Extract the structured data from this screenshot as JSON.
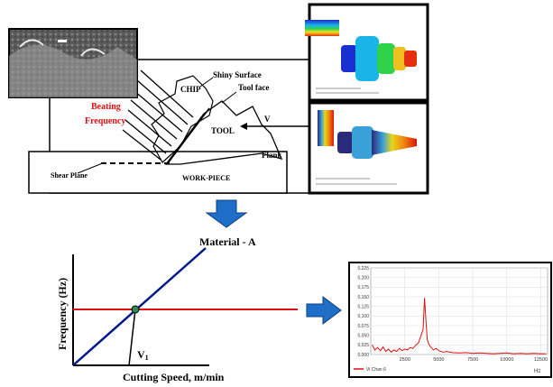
{
  "top_diagram": {
    "shiny_surface": "Shiny Surface",
    "chip": "CHIP",
    "tool_face": "Tool face",
    "beating": "Beating",
    "frequency": "Frequency",
    "tool": "TOOL",
    "velocity": "V",
    "flank": "Flank",
    "shear_plane": "Shear Plane",
    "work_piece": "WORK-PIECE",
    "accent_red": "#e01010"
  },
  "graph": {
    "title": "Material - A",
    "ylabel": "Frequency (Hz)",
    "xlabel": "Cutting Speed, m/min",
    "intersection_label": "V",
    "intersection_sub": "1",
    "line_color": "#001a8c",
    "level_color": "#e01010",
    "point_color": "#2e8b57"
  },
  "chart_data": {
    "type": "line",
    "title": "",
    "xlabel": "Hz",
    "ylabel": "",
    "xlim": [
      0,
      13000
    ],
    "ylim": [
      0,
      0.225
    ],
    "x_ticks": [
      "2500",
      "5000",
      "7500",
      "10000",
      "12500"
    ],
    "y_ticks": [
      "0,000",
      "0,025",
      "0,050",
      "0,075",
      "0,100",
      "0,125",
      "0,150",
      "0,175",
      "0,200",
      "0,225"
    ],
    "legend_label": "Vi Chan 6",
    "series": [
      {
        "x": [
          100,
          300,
          500,
          700,
          900,
          1100,
          1300,
          1500,
          1700,
          1900,
          2100,
          2300,
          2500,
          2700,
          2900,
          3100,
          3300,
          3500,
          3700,
          3850,
          3950,
          4050,
          4150,
          4250,
          4400,
          4600,
          4800,
          5000,
          5300,
          5600,
          6000,
          6500,
          7000,
          7500,
          8000,
          8500,
          9000,
          9500,
          10000,
          10500,
          11000,
          11500,
          12000,
          12500,
          12900
        ],
        "y": [
          0.025,
          0.012,
          0.018,
          0.01,
          0.02,
          0.008,
          0.014,
          0.006,
          0.012,
          0.008,
          0.016,
          0.01,
          0.014,
          0.012,
          0.018,
          0.016,
          0.024,
          0.03,
          0.05,
          0.065,
          0.147,
          0.09,
          0.04,
          0.028,
          0.02,
          0.012,
          0.016,
          0.01,
          0.006,
          0.008,
          0.005,
          0.004,
          0.005,
          0.003,
          0.004,
          0.003,
          0.002,
          0.003,
          0.004,
          0.002,
          0.003,
          0.002,
          0.003,
          0.002,
          0.002
        ]
      }
    ],
    "line_color": "#e01010"
  }
}
